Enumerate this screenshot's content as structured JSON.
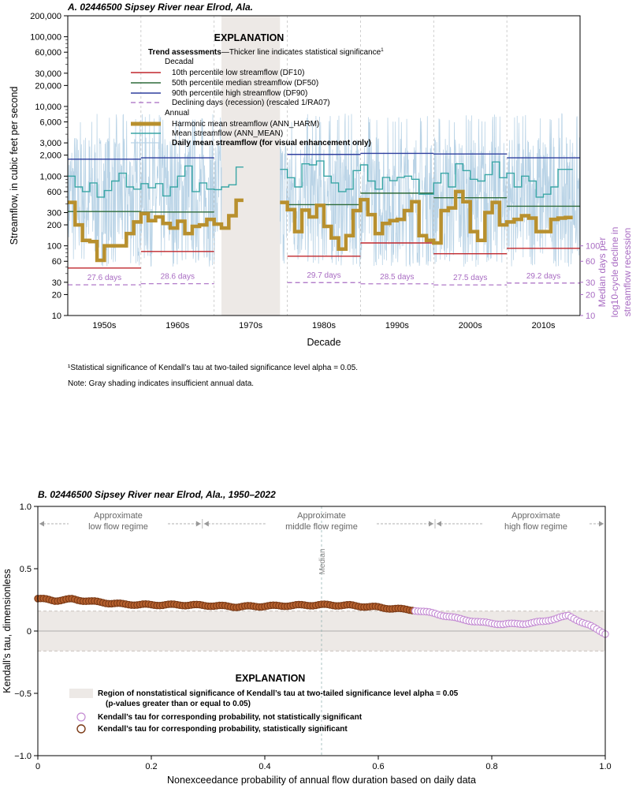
{
  "colors": {
    "df10": "#c0272d",
    "df50": "#2e6b3a",
    "df90": "#2f3f9e",
    "recession": "#a86bc2",
    "harm": "#b8902e",
    "mean": "#3aa6a6",
    "daily": "#b9d3e6",
    "gray": "#ede9e6",
    "sig_edge": "#7b3a16",
    "sig_fill": "#b5602e",
    "nonsig": "#c48bd3"
  },
  "panel_a": {
    "title": "A. 02446500 Sipsey River near Elrod, Ala.",
    "ylabel": "Streamflow, in cubic feet per second",
    "ylabel_right": [
      "Median days per",
      "log10-cycle decline in",
      "streamflow recession"
    ],
    "xlabel": "Decade",
    "footnote": "¹Statistical significance of Kendall’s tau at two-tailed significance level alpha = 0.05.",
    "note": "Note: Gray shading indicates insufficient annual data.",
    "legend": {
      "title": "EXPLANATION",
      "trend_bold": "Trend assessments",
      "trend_rest": "—Thicker line indicates statistical significance",
      "trend_sup": "1",
      "decadal": "Decadal",
      "df10": "10th percentile low streamflow (DF10)",
      "df50": "50th percentile median streamflow (DF50)",
      "df90": "90th percentile high streamflow (DF90)",
      "recession": "Declining days (recession) (rescaled 1/RA07)",
      "annual": "Annual",
      "harm": "Harmonic mean streamflow (ANN_HARM)",
      "mean": "Mean streamflow (ANN_MEAN)",
      "daily": "Daily mean streamflow (for visual enhancement only)"
    }
  },
  "panel_b": {
    "title": "B. 02446500 Sipsey River near Elrod, Ala., 1950–2022",
    "ylabel": "Kendall’s tau, dimensionless",
    "xlabel": "Nonexceedance probability of annual flow duration based on daily data",
    "median_label": "Median",
    "regime_low": [
      "Approximate",
      "low flow regime"
    ],
    "regime_mid": [
      "Approximate",
      "middle flow regime"
    ],
    "regime_high": [
      "Approximate",
      "high flow regime"
    ],
    "legend": {
      "title": "EXPLANATION",
      "region1": "Region of nonstatistical significance of Kendall’s tau at two-tailed significance level alpha = 0.05",
      "region2": "(p-values greater than or equal to 0.05)",
      "nonsig": "Kendall’s tau for corresponding probability, not statistically significant",
      "sig": "Kendall’s tau for corresponding probability, statistically significant"
    }
  },
  "chart_data": [
    {
      "type": "line",
      "title": "A. 02446500 Sipsey River near Elrod, Ala.",
      "xlabel": "Decade",
      "ylabel": "Streamflow, in cubic feet per second",
      "yscale": "log",
      "ylim": [
        10,
        200000
      ],
      "xlim": [
        1945,
        2015
      ],
      "yticks": [
        10,
        20,
        30,
        60,
        100,
        200,
        300,
        600,
        1000,
        2000,
        3000,
        6000,
        10000,
        20000,
        30000,
        60000,
        100000,
        200000
      ],
      "ytick_labels": [
        "10",
        "20",
        "30",
        "60",
        "100",
        "200",
        "300",
        "600",
        "1,000",
        "2,000",
        "3,000",
        "6,000",
        "10,000",
        "20,000",
        "30,000",
        "60,000",
        "100,000",
        "200,000"
      ],
      "categories": [
        "1950s",
        "1960s",
        "1970s",
        "1980s",
        "1990s",
        "2000s",
        "2010s"
      ],
      "right_axis": {
        "ticks": [
          10,
          20,
          30,
          60,
          100
        ],
        "labels": [
          "10",
          "20",
          "30",
          "60",
          "100"
        ]
      },
      "insufficient_data": [
        1966,
        1974
      ],
      "decade_breaks": [
        1955,
        1965,
        1975,
        1985,
        1995,
        2005
      ],
      "df10": [
        {
          "x0": 1945,
          "x1": 1955,
          "y": 48
        },
        {
          "x0": 1955,
          "x1": 1965,
          "y": 83
        },
        {
          "x0": 1975,
          "x1": 1985,
          "y": 71
        },
        {
          "x0": 1985,
          "x1": 1995,
          "y": 110
        },
        {
          "x0": 1995,
          "x1": 2005,
          "y": 77
        },
        {
          "x0": 2005,
          "x1": 2015,
          "y": 92
        }
      ],
      "df50": [
        {
          "x0": 1945,
          "x1": 1955,
          "y": 310
        },
        {
          "x0": 1955,
          "x1": 1965,
          "y": 305
        },
        {
          "x0": 1975,
          "x1": 1985,
          "y": 390
        },
        {
          "x0": 1985,
          "x1": 1995,
          "y": 570
        },
        {
          "x0": 1995,
          "x1": 2005,
          "y": 490
        },
        {
          "x0": 2005,
          "x1": 2015,
          "y": 370
        }
      ],
      "df90": [
        {
          "x0": 1945,
          "x1": 1955,
          "y": 1750
        },
        {
          "x0": 1955,
          "x1": 1965,
          "y": 1830
        },
        {
          "x0": 1975,
          "x1": 1985,
          "y": 2050
        },
        {
          "x0": 1985,
          "x1": 1995,
          "y": 2120
        },
        {
          "x0": 1995,
          "x1": 2005,
          "y": 2080
        },
        {
          "x0": 2005,
          "x1": 2015,
          "y": 1830
        }
      ],
      "recession": [
        {
          "x0": 1945,
          "x1": 1955,
          "y": 27.6,
          "label": "27.6 days"
        },
        {
          "x0": 1955,
          "x1": 1965,
          "y": 28.6,
          "label": "28.6 days"
        },
        {
          "x0": 1975,
          "x1": 1985,
          "y": 29.7,
          "label": "29.7 days"
        },
        {
          "x0": 1985,
          "x1": 1995,
          "y": 28.5,
          "label": "28.5 days"
        },
        {
          "x0": 1995,
          "x1": 2005,
          "y": 27.5,
          "label": "27.5 days"
        },
        {
          "x0": 2005,
          "x1": 2015,
          "y": 29.2,
          "label": "29.2 days"
        }
      ],
      "ann_harm": [
        {
          "start": 1945,
          "values": [
            420,
            200,
            120,
            115,
            62,
            100,
            100,
            100,
            150,
            220,
            290,
            230,
            260,
            210,
            180,
            225,
            150,
            190,
            200,
            240,
            205,
            180,
            270,
            450
          ]
        },
        {
          "start": 1974,
          "values": [
            420,
            330,
            160,
            325,
            260,
            380,
            190,
            130,
            90,
            140,
            320,
            460,
            280,
            150,
            210,
            230,
            240,
            320,
            430,
            140,
            120,
            110,
            320,
            350,
            600,
            430,
            160,
            120,
            300,
            420,
            200,
            220,
            240,
            270,
            250,
            160,
            160,
            240,
            250,
            255
          ]
        }
      ],
      "ann_mean": [
        {
          "start": 1945,
          "values": [
            1000,
            700,
            600,
            800,
            500,
            620,
            850,
            1100,
            700,
            650,
            780,
            680,
            780,
            520,
            700,
            1000,
            1400,
            600,
            800,
            650,
            640,
            700,
            750,
            1350
          ]
        },
        {
          "start": 1974,
          "values": [
            1250,
            950,
            700,
            1500,
            1450,
            1650,
            1000,
            800,
            600,
            650,
            1200,
            1450,
            850,
            650,
            960,
            860,
            960,
            1000,
            900,
            550,
            550,
            800,
            1100,
            700,
            1500,
            1200,
            900,
            850,
            1050,
            1600,
            950,
            1100,
            700,
            1000,
            850,
            500,
            550,
            700,
            1250,
            1250
          ]
        }
      ]
    },
    {
      "type": "scatter",
      "title": "B. 02446500 Sipsey River near Elrod, Ala., 1950–2022",
      "xlabel": "Nonexceedance probability of annual flow duration based on daily data",
      "ylabel": "Kendall’s tau, dimensionless",
      "xlim": [
        0,
        1
      ],
      "ylim": [
        -1,
        1
      ],
      "xticks": [
        0,
        0.2,
        0.4,
        0.6,
        0.8,
        1.0
      ],
      "xtick_labels": [
        "0",
        "0.2",
        "0.4",
        "0.6",
        "0.8",
        "1.0"
      ],
      "yticks": [
        -1,
        -0.5,
        0,
        0.5,
        1
      ],
      "ytick_labels": [
        "−1.0",
        "−0.5",
        "0",
        "0.5",
        "1.0"
      ],
      "nonsig_band": [
        -0.16,
        0.16
      ],
      "regime_boundaries": [
        0.29,
        0.7
      ],
      "median_x": 0.5,
      "sig_curve": [
        [
          0,
          0.26
        ],
        [
          0.03,
          0.245
        ],
        [
          0.06,
          0.255
        ],
        [
          0.1,
          0.235
        ],
        [
          0.15,
          0.215
        ],
        [
          0.2,
          0.21
        ],
        [
          0.25,
          0.21
        ],
        [
          0.3,
          0.205
        ],
        [
          0.35,
          0.195
        ],
        [
          0.4,
          0.2
        ],
        [
          0.45,
          0.205
        ],
        [
          0.5,
          0.21
        ],
        [
          0.55,
          0.205
        ],
        [
          0.6,
          0.19
        ],
        [
          0.64,
          0.175
        ],
        [
          0.66,
          0.17
        ]
      ],
      "nonsig_curve": [
        [
          0.66,
          0.17
        ],
        [
          0.7,
          0.14
        ],
        [
          0.74,
          0.1
        ],
        [
          0.78,
          0.07
        ],
        [
          0.82,
          0.055
        ],
        [
          0.86,
          0.06
        ],
        [
          0.89,
          0.075
        ],
        [
          0.92,
          0.11
        ],
        [
          0.935,
          0.12
        ],
        [
          0.95,
          0.09
        ],
        [
          0.97,
          0.05
        ],
        [
          0.99,
          0.0
        ],
        [
          1.0,
          -0.02
        ]
      ]
    }
  ]
}
